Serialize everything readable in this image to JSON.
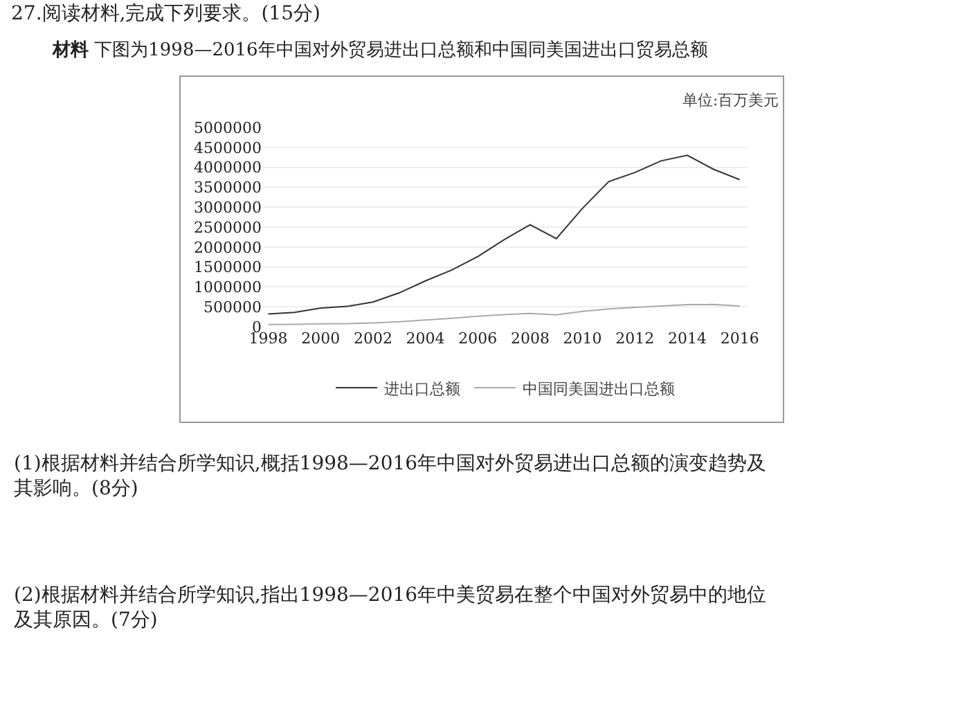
{
  "chart_data": {
    "type": "line",
    "title": "27.阅读材料,完成下列要求。(15分)",
    "subtitle": "材料 下图为1998—2016年中国对外贸易进出口总额和中国同美国进出口贸易总额",
    "x": [
      1998,
      1999,
      2000,
      2001,
      2002,
      2003,
      2004,
      2005,
      2006,
      2007,
      2008,
      2009,
      2010,
      2011,
      2012,
      2013,
      2014,
      2015,
      2016
    ],
    "series": [
      {
        "name": "进出口总额",
        "color": "#333333",
        "values": [
          320000,
          360000,
          470000,
          510000,
          620000,
          850000,
          1150000,
          1420000,
          1760000,
          2180000,
          2560000,
          2210000,
          2970000,
          3640000,
          3870000,
          4160000,
          4300000,
          3950000,
          3690000
        ]
      },
      {
        "name": "中国同美国进出口总额",
        "color": "#aaaaaa",
        "values": [
          55000,
          61000,
          74000,
          80000,
          97000,
          126000,
          170000,
          212000,
          263000,
          302000,
          334000,
          298000,
          385000,
          447000,
          485000,
          521000,
          555000,
          558000,
          520000
        ]
      }
    ],
    "xlim": [
      1997.8,
      2016.3
    ],
    "xticks": [
      1998,
      2000,
      2002,
      2004,
      2006,
      2008,
      2010,
      2012,
      2014,
      2016
    ],
    "ylim": [
      0,
      5000000
    ],
    "yticks": [
      0,
      500000,
      1000000,
      1500000,
      2000000,
      2500000,
      3000000,
      3500000,
      4000000,
      4500000,
      5000000
    ],
    "grid": "y",
    "legend": "bottom",
    "marker": "none",
    "line_style": "solid",
    "annotations": [
      "单位:百万美元",
      "(1)根据材料并结合所学知识,概括1998—2016年中国对外贸易进出口总额的演变趋势及其影响。(8分)",
      "(2)根据材料并结合所学知识,指出1998—2016年中美贸易在整个中国对外贸易中的地位及其原因。(7分)"
    ]
  }
}
